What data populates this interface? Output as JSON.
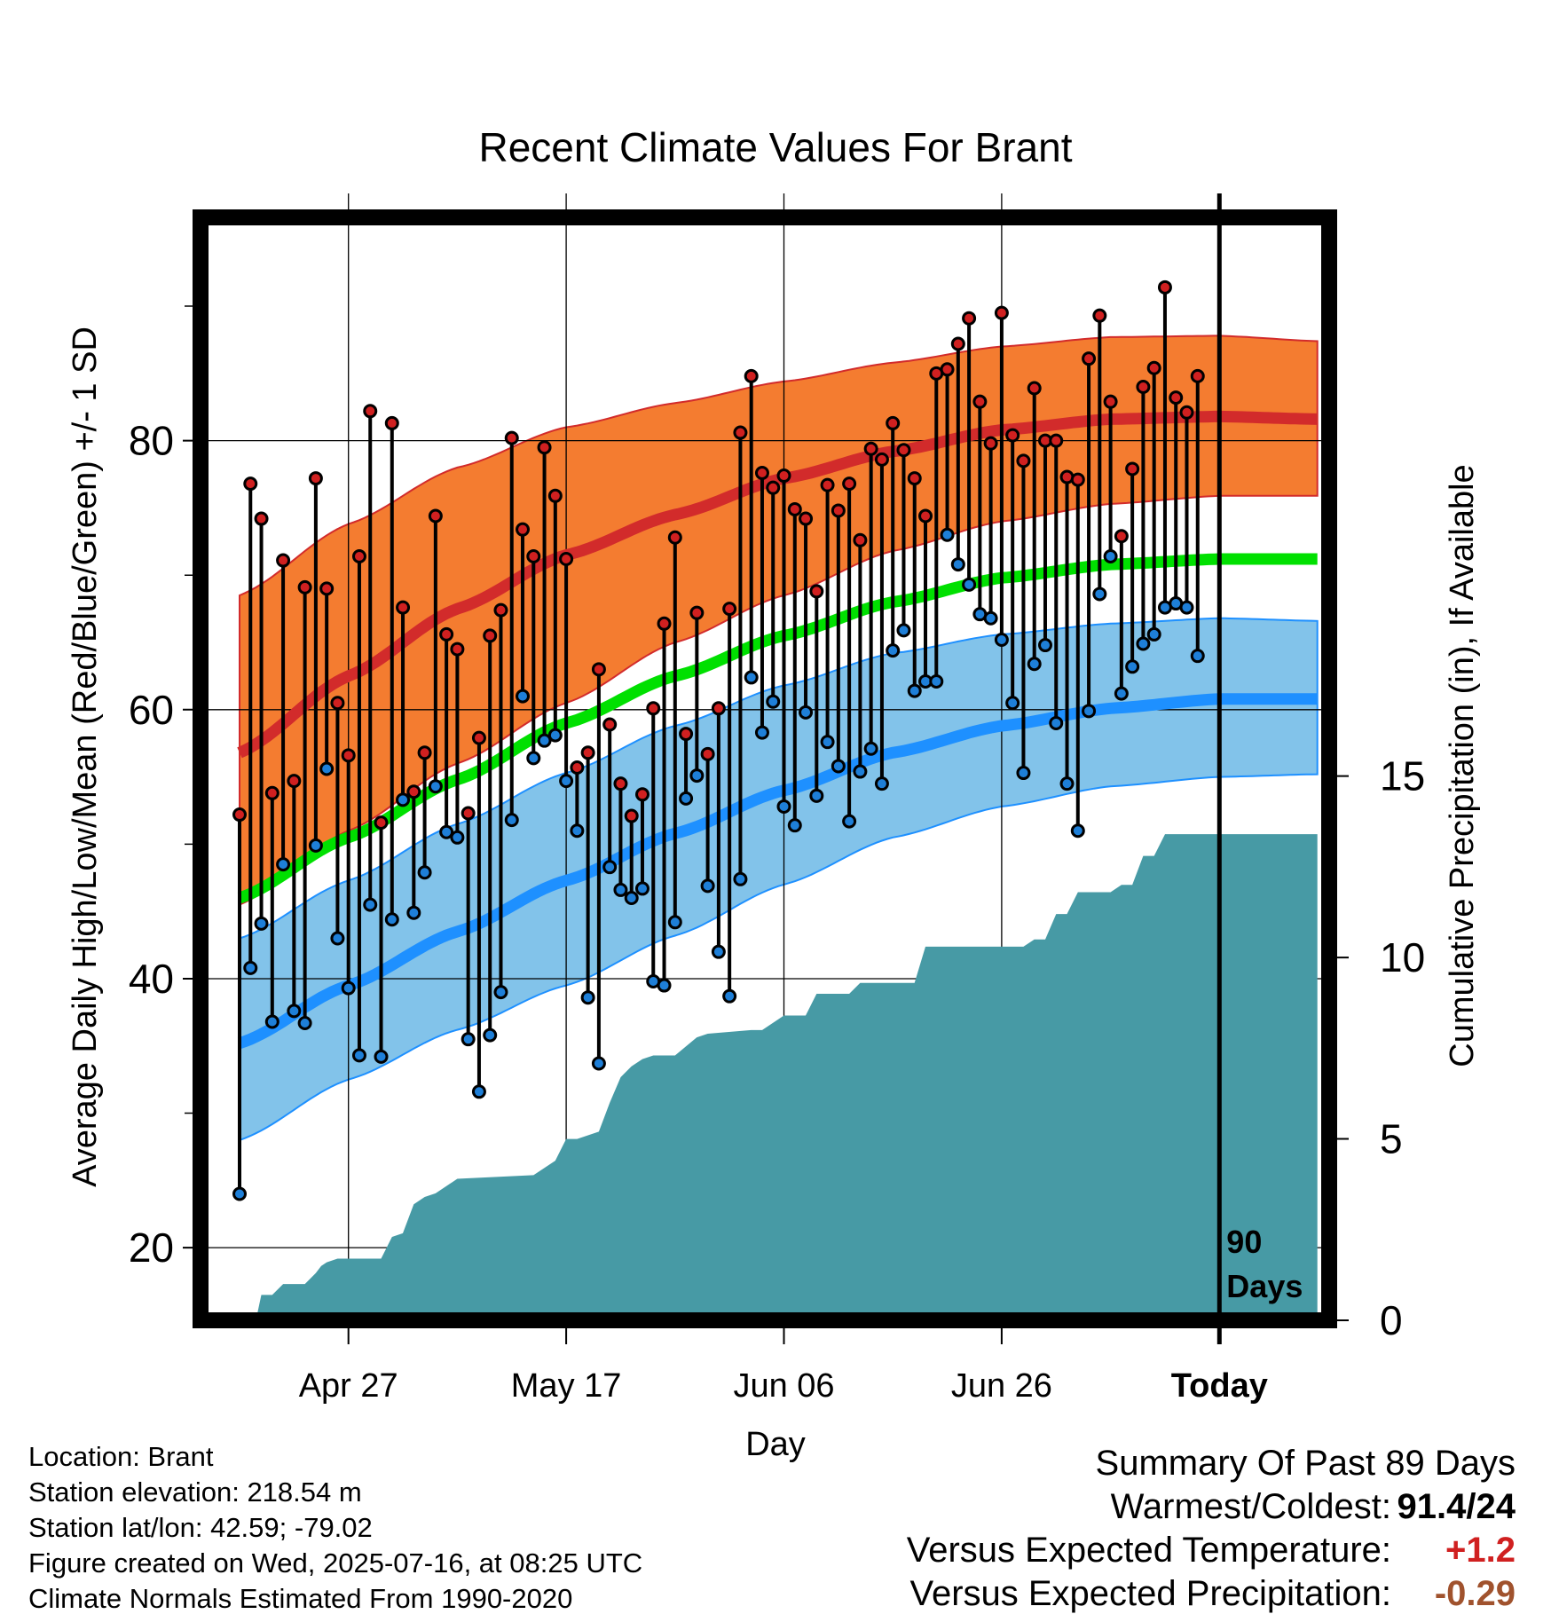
{
  "chart_data": {
    "type": "line",
    "title": "Recent Climate Values For Brant",
    "xlabel": "Day",
    "ylabel": "Average Daily High/Low/Mean (Red/Blue/Green) +/- 1 SD",
    "y2label": "Cumulative Precipitation (in), If Available",
    "x_ticks": [
      "Apr 27",
      "May 17",
      "Jun 06",
      "Jun 26",
      "Today"
    ],
    "x_tick_day_index": [
      10,
      30,
      50,
      70,
      90
    ],
    "y_ticks": [
      20,
      40,
      60,
      80
    ],
    "ylim": [
      14.6,
      96.6
    ],
    "y2_ticks": [
      0,
      5,
      10,
      15
    ],
    "y2lim": [
      0,
      30.4
    ],
    "day_range": [
      0,
      99
    ],
    "today_label": "90\nDays",
    "colors": {
      "high_band": "#f47c30",
      "high_mean_line": "#d22b2b",
      "low_band": "#82c3ea",
      "low_mean_line": "#1e90ff",
      "mean_line": "#00e000",
      "precip": "#479aa5",
      "high_marker": "#d02020",
      "low_marker": "#1e7fd8"
    },
    "normal_high": {
      "days": [
        0,
        10,
        20,
        30,
        40,
        50,
        60,
        70,
        80,
        90,
        99
      ],
      "mean": [
        56.8,
        62.5,
        67.5,
        71.5,
        74.5,
        77.2,
        79.2,
        80.8,
        81.6,
        81.8,
        81.6
      ],
      "upper": [
        68.5,
        73.8,
        78.0,
        81.0,
        82.8,
        84.4,
        85.8,
        87.0,
        87.7,
        87.8,
        87.4
      ],
      "lower": [
        45.5,
        51.0,
        56.0,
        60.5,
        65.0,
        68.5,
        71.8,
        74.0,
        75.3,
        75.9,
        75.9
      ]
    },
    "normal_low": {
      "days": [
        0,
        10,
        20,
        30,
        40,
        50,
        60,
        70,
        80,
        90,
        99
      ],
      "mean": [
        35.2,
        39.5,
        43.5,
        47.3,
        50.8,
        54.0,
        56.8,
        58.8,
        60.1,
        60.8,
        60.8
      ],
      "upper": [
        43.0,
        47.3,
        51.5,
        55.3,
        58.8,
        61.8,
        64.2,
        65.6,
        66.4,
        66.8,
        66.6
      ],
      "lower": [
        28.0,
        32.5,
        36.2,
        39.5,
        43.2,
        47.0,
        50.5,
        52.8,
        54.3,
        55.0,
        55.2
      ]
    },
    "normal_mean": {
      "days": [
        0,
        10,
        20,
        30,
        40,
        50,
        60,
        70,
        80,
        90,
        99
      ],
      "values": [
        46.0,
        50.5,
        54.8,
        59.0,
        62.5,
        65.5,
        68.0,
        69.8,
        70.8,
        71.2,
        71.2
      ]
    },
    "daily_high": [
      52.2,
      76.8,
      74.2,
      53.8,
      71.1,
      54.7,
      69.1,
      77.2,
      69.0,
      60.5,
      56.6,
      71.4,
      82.2,
      51.6,
      81.3,
      67.6,
      53.9,
      56.8,
      74.4,
      65.6,
      64.5,
      52.3,
      57.9,
      65.5,
      67.4,
      80.2,
      73.4,
      71.4,
      79.5,
      75.9,
      71.2,
      55.7,
      56.8,
      63.0,
      58.9,
      54.5,
      52.1,
      53.7,
      60.1,
      66.4,
      72.8,
      58.2,
      67.2,
      56.7,
      60.1,
      67.5,
      80.6,
      84.8,
      77.6,
      76.5,
      77.4,
      74.9,
      74.2,
      68.8,
      76.7,
      74.8,
      76.8,
      72.6,
      79.4,
      78.6,
      81.3,
      79.3,
      77.2,
      74.4,
      85.0,
      85.3,
      87.2,
      89.1,
      82.9,
      79.8,
      89.5,
      80.4,
      78.5,
      83.9,
      80.0,
      80.0,
      77.3,
      77.1,
      86.1,
      89.3,
      82.9,
      72.9,
      77.9,
      84.0,
      85.4,
      91.4,
      83.2,
      82.1,
      84.8
    ],
    "daily_low": [
      24.0,
      40.8,
      44.1,
      36.8,
      48.5,
      37.6,
      36.7,
      49.9,
      55.6,
      43.0,
      39.3,
      34.3,
      45.5,
      34.2,
      44.4,
      53.3,
      44.9,
      47.9,
      54.3,
      50.9,
      50.5,
      35.5,
      31.6,
      35.8,
      39.0,
      51.8,
      61.0,
      56.4,
      57.7,
      58.1,
      54.7,
      51.0,
      38.6,
      33.7,
      48.3,
      46.6,
      46.0,
      46.7,
      39.8,
      39.5,
      44.2,
      53.4,
      55.1,
      46.9,
      42.0,
      38.7,
      47.4,
      62.4,
      58.3,
      60.6,
      52.8,
      51.4,
      59.8,
      53.6,
      57.6,
      55.8,
      51.7,
      55.4,
      57.1,
      54.5,
      64.4,
      65.9,
      61.4,
      62.1,
      62.1,
      73.0,
      70.8,
      69.3,
      67.1,
      66.8,
      65.2,
      60.5,
      55.3,
      63.4,
      64.8,
      59.0,
      54.5,
      51.0,
      59.9,
      68.6,
      71.4,
      61.2,
      63.2,
      64.9,
      65.6,
      67.6,
      67.9,
      67.6,
      64.0
    ],
    "precip_cumulative": {
      "days": [
        0,
        1.5,
        2,
        3,
        4,
        6,
        7,
        7.5,
        8,
        9,
        13,
        14,
        15,
        16,
        17,
        18,
        20,
        27,
        29,
        30,
        31,
        33,
        34,
        35,
        36,
        37,
        38,
        40,
        42,
        43,
        47,
        48,
        50,
        52,
        53,
        56,
        57,
        62,
        63,
        72,
        73,
        74,
        75,
        76,
        77,
        80,
        81,
        82,
        83,
        84,
        85,
        99
      ],
      "values": [
        0,
        0,
        0.7,
        0.7,
        1.0,
        1.0,
        1.3,
        1.5,
        1.6,
        1.7,
        1.7,
        2.3,
        2.4,
        3.2,
        3.4,
        3.5,
        3.9,
        4.0,
        4.4,
        5.0,
        5.0,
        5.2,
        6.0,
        6.7,
        7.0,
        7.2,
        7.3,
        7.3,
        7.8,
        7.9,
        8.0,
        8.0,
        8.4,
        8.4,
        9.0,
        9.0,
        9.3,
        9.3,
        10.3,
        10.3,
        10.5,
        10.5,
        11.2,
        11.2,
        11.8,
        11.8,
        12.0,
        12.0,
        12.8,
        12.8,
        13.4,
        13.4
      ]
    }
  },
  "footer": {
    "location": "Location: Brant",
    "elevation": "Station elevation: 218.54 m",
    "latlon": "Station lat/lon: 42.59; -79.02",
    "created": "Figure created on Wed, 2025-07-16, at 08:25 UTC",
    "normals": "Climate Normals Estimated From 1990-2020"
  },
  "summary": {
    "heading": "Summary Of Past 89 Days",
    "warmest_label": "Warmest/Coldest:",
    "warmest_value": "91.4/24",
    "temp_label": "Versus Expected Temperature:",
    "temp_value": "+1.2",
    "temp_color": "#d02020",
    "precip_label": "Versus Expected Precipitation:",
    "precip_value": "-0.29",
    "precip_color": "#a0522d"
  }
}
